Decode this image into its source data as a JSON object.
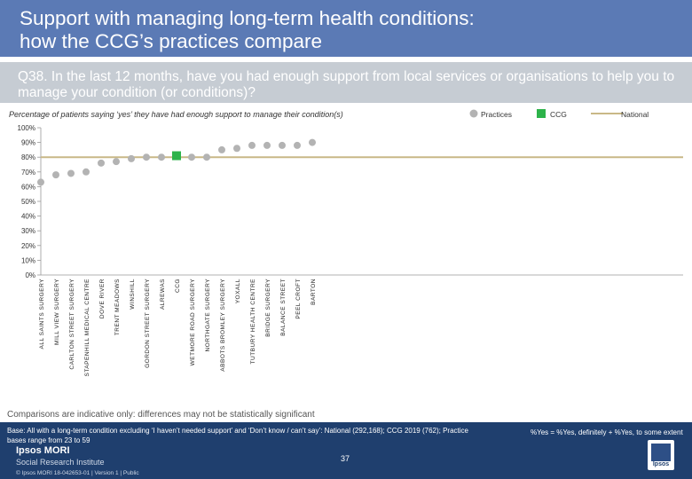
{
  "title_line1": "Support with managing long-term health conditions:",
  "title_line2": "how the CCG’s practices compare",
  "question": "Q38. In the last 12 months, have you had enough support from local services or organisations to help you to manage your condition (or conditions)?",
  "subtitle": "Percentage of patients saying ‘yes’ they have had enough support to manage their condition(s)",
  "legend": {
    "practices": "Practices",
    "ccg": "CCG",
    "national": "National"
  },
  "colors": {
    "header": "#5b7ab5",
    "band": "#c6ccd3",
    "practice": "#b3b3b3",
    "ccg": "#2db34a",
    "national": "#c9b887",
    "footer": "#1f3f6e"
  },
  "chart_data": {
    "type": "scatter",
    "categories": [
      "ALL SAINTS SURGERY",
      "MILL VIEW SURGERY",
      "CARLTON STREET SURGERY",
      "STAPENHILL MEDICAL CENTRE",
      "DOVE RIVER",
      "TRENT MEADOWS",
      "WINSHILL",
      "GORDON STREET SURGERY",
      "ALREWAS",
      "CCG",
      "WETMORE ROAD SURGERY",
      "NORTHGATE SURGERY",
      "ABBOTS BROMLEY SURGERY",
      "YOXALL",
      "TUTBURY HEALTH CENTRE",
      "BRIDGE SURGERY",
      "BALANCE STREET",
      "PEEL CROFT",
      "BARTON"
    ],
    "values": [
      63,
      68,
      69,
      70,
      76,
      77,
      79,
      80,
      80,
      81,
      80,
      80,
      85,
      86,
      88,
      88,
      88,
      88,
      90
    ],
    "highlight": "CCG",
    "national": 80,
    "ylim": [
      0,
      100
    ],
    "yticks": [
      "100%",
      "90%",
      "80%",
      "70%",
      "60%",
      "50%",
      "40%",
      "30%",
      "20%",
      "10%",
      "0%"
    ],
    "ylabel": "",
    "xlabel": ""
  },
  "note": "Comparisons are indicative only: differences may not be statistically significant",
  "base_text": "Base: All with a long-term condition excluding ‘I haven’t needed support’ and ‘Don’t know / can’t say’: National (292,168); CCG 2019 (762); Practice bases range from 23 to 59",
  "yes_definition": "%Yes = %Yes, definitely + %Yes, to some extent",
  "page_number": "37",
  "brand_line1": "Ipsos MORI",
  "brand_line2": "Social Research Institute",
  "copyright": "© Ipsos MORI     18-042653-01 | Version 1 | Public",
  "logo_text": "Ipsos"
}
